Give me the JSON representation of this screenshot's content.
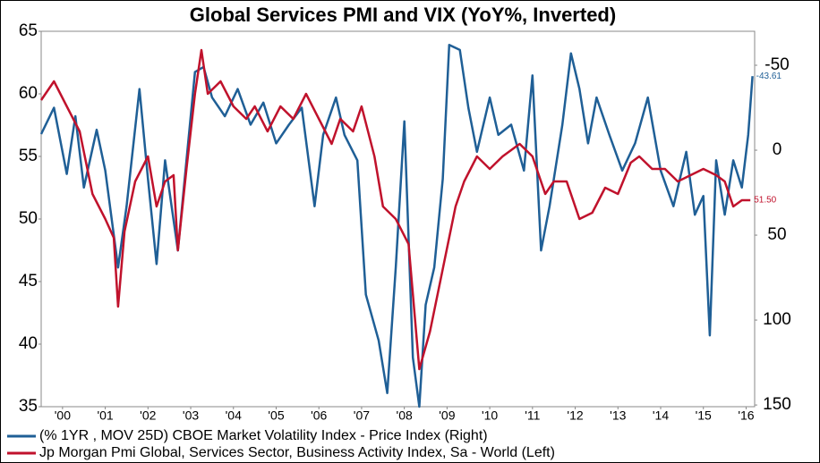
{
  "chart_data": {
    "type": "line",
    "title": "Global Services PMI and VIX (YoY%, Inverted)",
    "xlim": [
      2000,
      2016.7
    ],
    "xticks": [
      {
        "value": 2000.5,
        "label": "'00"
      },
      {
        "value": 2001.5,
        "label": "'01"
      },
      {
        "value": 2002.5,
        "label": "'02"
      },
      {
        "value": 2003.5,
        "label": "'03"
      },
      {
        "value": 2004.5,
        "label": "'04"
      },
      {
        "value": 2005.5,
        "label": "'05"
      },
      {
        "value": 2006.5,
        "label": "'06"
      },
      {
        "value": 2007.5,
        "label": "'07"
      },
      {
        "value": 2008.5,
        "label": "'08"
      },
      {
        "value": 2009.5,
        "label": "'09"
      },
      {
        "value": 2010.5,
        "label": "'10"
      },
      {
        "value": 2011.5,
        "label": "'11"
      },
      {
        "value": 2012.5,
        "label": "'12"
      },
      {
        "value": 2013.5,
        "label": "'13"
      },
      {
        "value": 2014.5,
        "label": "'14"
      },
      {
        "value": 2015.5,
        "label": "'15"
      },
      {
        "value": 2016.5,
        "label": "'16"
      }
    ],
    "ylim": [
      35,
      65
    ],
    "yticks": [
      35,
      40,
      45,
      50,
      55,
      60,
      65
    ],
    "y2lim": [
      151,
      -70
    ],
    "y2ticks": [
      -50,
      0,
      50,
      100,
      150
    ],
    "series": [
      {
        "name": "(% 1YR , MOV 25D) CBOE Market Volatility Index - Price Index  (Right)",
        "color": "#1f5f96",
        "axis": "y2",
        "x": [
          2000.0,
          2000.3,
          2000.6,
          2000.8,
          2001.0,
          2001.3,
          2001.5,
          2001.8,
          2002.0,
          2002.3,
          2002.5,
          2002.7,
          2002.9,
          2003.2,
          2003.4,
          2003.6,
          2003.8,
          2004.0,
          2004.3,
          2004.6,
          2004.9,
          2005.2,
          2005.5,
          2005.8,
          2006.1,
          2006.4,
          2006.6,
          2006.9,
          2007.1,
          2007.4,
          2007.6,
          2007.9,
          2008.1,
          2008.3,
          2008.5,
          2008.7,
          2008.85,
          2009.0,
          2009.2,
          2009.4,
          2009.55,
          2009.8,
          2010.0,
          2010.2,
          2010.5,
          2010.7,
          2011.0,
          2011.3,
          2011.5,
          2011.7,
          2011.9,
          2012.2,
          2012.4,
          2012.6,
          2012.8,
          2013.0,
          2013.3,
          2013.6,
          2013.9,
          2014.2,
          2014.5,
          2014.8,
          2015.1,
          2015.3,
          2015.5,
          2015.65,
          2015.8,
          2016.0,
          2016.2,
          2016.4,
          2016.55,
          2016.65
        ],
        "values": [
          -9.5,
          -25,
          14,
          -20,
          22,
          -12,
          12,
          69,
          33,
          -36,
          17,
          67,
          6,
          59,
          6,
          -46,
          -49,
          -31,
          -20,
          -36,
          -15,
          -28,
          -4,
          -15,
          -25,
          33,
          -9,
          -31,
          -9,
          6,
          85,
          112,
          143,
          69,
          -17,
          122,
          151,
          91,
          69,
          17,
          -62,
          -59,
          -25,
          1,
          -31,
          -9,
          -15,
          12,
          -44,
          59,
          33,
          -15,
          -57,
          -36,
          -4,
          -31,
          -9,
          12,
          -4,
          -31,
          12,
          33,
          1,
          38,
          27,
          109,
          6,
          38,
          6,
          22,
          -9,
          -43.61
        ]
      },
      {
        "name": "Jp Morgan Pmi Global, Services Sector, Business Activity Index, Sa - World  (Left)",
        "color": "#c0122c",
        "x": [
          2000.0,
          2000.3,
          2000.6,
          2000.9,
          2001.2,
          2001.5,
          2001.7,
          2001.8,
          2001.95,
          2002.2,
          2002.5,
          2002.7,
          2002.9,
          2003.1,
          2003.2,
          2003.4,
          2003.6,
          2003.75,
          2003.9,
          2004.2,
          2004.5,
          2004.8,
          2005.0,
          2005.3,
          2005.6,
          2005.9,
          2006.2,
          2006.5,
          2006.8,
          2007.0,
          2007.3,
          2007.5,
          2007.8,
          2008.0,
          2008.3,
          2008.6,
          2008.85,
          2009.1,
          2009.4,
          2009.7,
          2009.9,
          2010.2,
          2010.5,
          2010.8,
          2011.2,
          2011.5,
          2011.8,
          2012.0,
          2012.3,
          2012.6,
          2012.9,
          2013.2,
          2013.5,
          2013.8,
          2014.0,
          2014.3,
          2014.6,
          2014.9,
          2015.2,
          2015.5,
          2015.8,
          2016.0,
          2016.2,
          2016.4,
          2016.6
        ],
        "values": [
          59.5,
          61,
          59,
          57,
          52,
          50,
          48.5,
          43,
          49,
          53,
          55,
          51,
          53,
          53.5,
          47.5,
          54,
          60,
          63.5,
          60,
          61,
          59,
          58,
          59,
          57,
          59,
          58,
          60,
          58,
          56,
          58,
          57,
          59,
          55,
          51,
          50,
          48,
          38,
          41,
          46,
          51,
          53,
          55,
          54,
          55,
          56,
          55,
          52,
          53,
          53,
          50,
          50.5,
          52.5,
          52,
          54.5,
          55,
          54,
          54,
          53,
          53.5,
          54,
          53.5,
          53,
          51,
          51.5,
          51.5
        ],
        "value_labels": [
          null,
          null,
          null,
          null,
          null,
          null,
          null,
          null,
          null,
          null,
          null,
          null,
          null,
          null,
          null,
          null,
          null,
          null,
          null,
          null,
          null,
          null,
          null,
          null,
          null,
          null,
          null,
          null,
          null,
          null,
          null,
          null,
          null,
          null,
          null,
          null,
          null,
          null,
          null,
          null,
          null,
          null,
          null,
          null,
          null,
          null,
          null,
          null,
          null,
          null,
          null,
          null,
          null,
          null,
          null,
          null,
          null,
          null,
          null,
          null,
          null,
          null,
          null,
          null,
          "51.50"
        ]
      }
    ]
  }
}
